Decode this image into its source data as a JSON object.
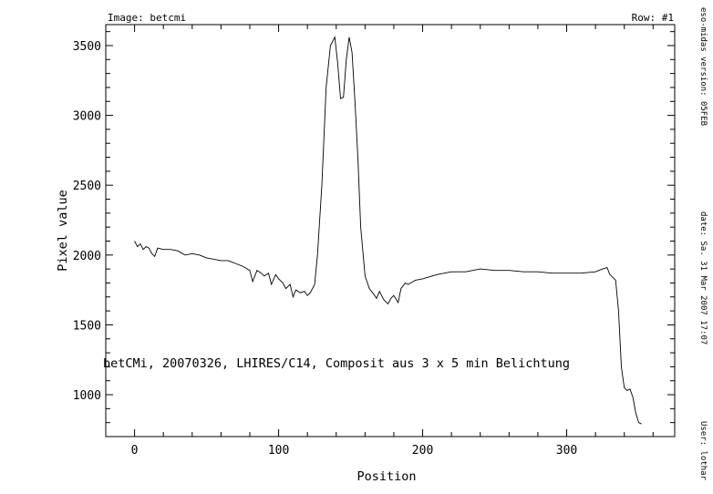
{
  "header": {
    "image_label": "Image: betcmi",
    "row_label": "Row: #1"
  },
  "side_info": {
    "version": "eso-midas version: 05FEB",
    "date": "date: Sa. 31 Mar 2007 17:07",
    "user": "User: lothar"
  },
  "chart_data": {
    "type": "line",
    "title": "",
    "annotation": "betCMi, 20070326, LHIRES/C14, Composit aus 3 x 5 min Belichtung",
    "xlabel": "Position",
    "ylabel": "Pixel value",
    "xlim": [
      -20,
      375
    ],
    "ylim": [
      700,
      3650
    ],
    "x_ticks": [
      0,
      100,
      200,
      300
    ],
    "y_ticks": [
      1000,
      1500,
      2000,
      2500,
      3000,
      3500
    ],
    "grid": false,
    "series": [
      {
        "x": [
          0,
          2,
          4,
          6,
          8,
          10,
          12,
          14,
          16,
          20,
          25,
          30,
          35,
          40,
          45,
          50,
          55,
          60,
          65,
          70,
          75,
          80,
          82,
          85,
          88,
          90,
          93,
          95,
          98,
          100,
          103,
          105,
          108,
          110,
          112,
          115,
          118,
          120,
          122,
          125,
          127,
          130,
          133,
          136,
          139,
          141,
          143,
          145,
          147,
          149,
          151,
          153,
          155,
          157,
          160,
          163,
          166,
          168,
          170,
          173,
          176,
          178,
          180,
          183,
          185,
          188,
          190,
          195,
          200,
          210,
          220,
          230,
          240,
          250,
          260,
          270,
          280,
          290,
          300,
          310,
          320,
          325,
          328,
          330,
          332,
          334,
          336,
          338,
          340,
          342,
          344,
          346,
          348,
          350,
          352
        ],
        "y": [
          2100,
          2060,
          2080,
          2040,
          2060,
          2050,
          2010,
          1990,
          2050,
          2040,
          2040,
          2030,
          2000,
          2010,
          2000,
          1980,
          1970,
          1960,
          1960,
          1940,
          1920,
          1890,
          1810,
          1890,
          1870,
          1850,
          1870,
          1790,
          1860,
          1830,
          1800,
          1760,
          1790,
          1700,
          1750,
          1730,
          1740,
          1710,
          1730,
          1790,
          2000,
          2500,
          3200,
          3500,
          3560,
          3380,
          3120,
          3130,
          3400,
          3560,
          3450,
          3100,
          2700,
          2200,
          1850,
          1760,
          1720,
          1690,
          1740,
          1680,
          1650,
          1690,
          1710,
          1660,
          1760,
          1800,
          1790,
          1820,
          1830,
          1860,
          1880,
          1880,
          1900,
          1890,
          1890,
          1880,
          1880,
          1870,
          1870,
          1870,
          1880,
          1900,
          1910,
          1860,
          1840,
          1820,
          1600,
          1200,
          1050,
          1030,
          1040,
          980,
          870,
          800,
          790
        ]
      }
    ]
  }
}
